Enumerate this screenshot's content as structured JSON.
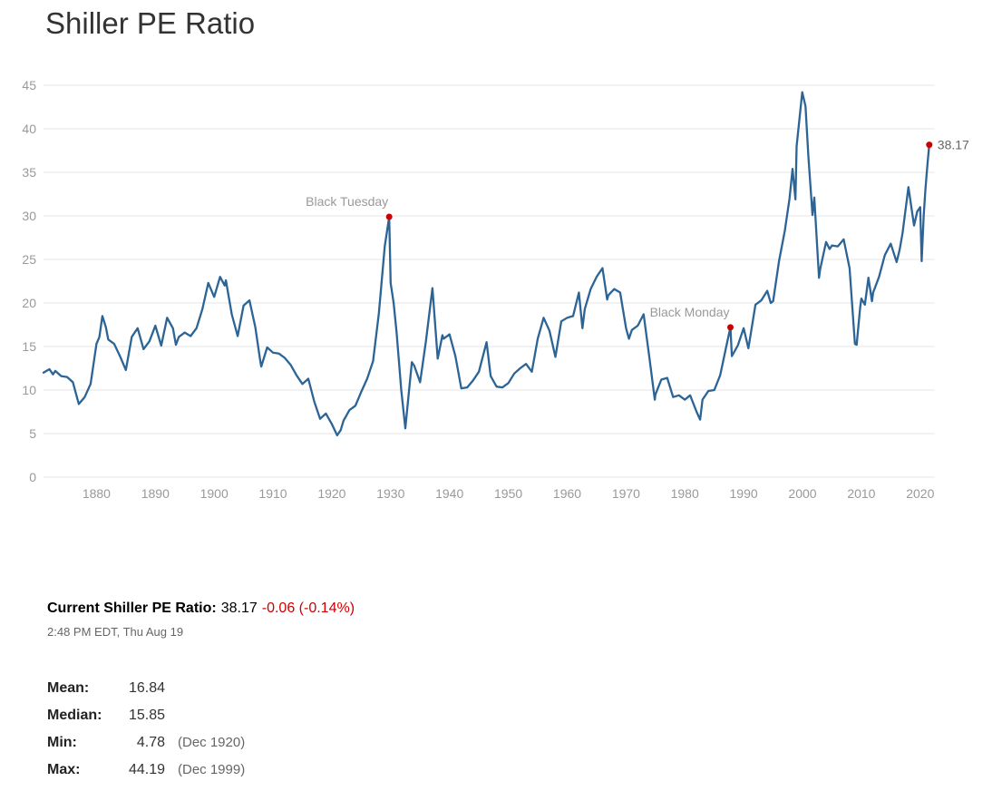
{
  "page": {
    "title": "Shiller PE Ratio"
  },
  "summary": {
    "label": "Current Shiller PE Ratio:",
    "value": "38.17",
    "change": "-0.06 (-0.14%)",
    "timestamp": "2:48 PM EDT, Thu Aug 19"
  },
  "stats": {
    "rows": [
      {
        "label": "Mean:",
        "value": "16.84",
        "note": ""
      },
      {
        "label": "Median:",
        "value": "15.85",
        "note": ""
      },
      {
        "label": "Min:",
        "value": "4.78",
        "note": "(Dec 1920)"
      },
      {
        "label": "Max:",
        "value": "44.19",
        "note": "(Dec 1999)"
      }
    ]
  },
  "chart_data": {
    "type": "line",
    "title": "Shiller PE Ratio",
    "xlabel": "",
    "ylabel": "",
    "xlim": [
      1871,
      2022.5
    ],
    "ylim": [
      0,
      45
    ],
    "x_ticks": [
      1880,
      1890,
      1900,
      1910,
      1920,
      1930,
      1940,
      1950,
      1960,
      1970,
      1980,
      1990,
      2000,
      2010,
      2020
    ],
    "y_ticks": [
      0,
      5,
      10,
      15,
      20,
      25,
      30,
      35,
      40,
      45
    ],
    "grid": "horizontal",
    "legend": "none",
    "line_color": "#2c6496",
    "marker_color": "#cc0000",
    "grid_color": "#e6e6e6",
    "tick_color": "#999999",
    "series": [
      {
        "name": "Shiller PE",
        "points": [
          [
            1871,
            12.0
          ],
          [
            1872,
            12.4
          ],
          [
            1872.6,
            11.8
          ],
          [
            1873,
            12.2
          ],
          [
            1874,
            11.6
          ],
          [
            1875,
            11.5
          ],
          [
            1876,
            10.9
          ],
          [
            1877,
            8.4
          ],
          [
            1878,
            9.2
          ],
          [
            1879,
            10.7
          ],
          [
            1880,
            15.3
          ],
          [
            1880.5,
            16.1
          ],
          [
            1881,
            18.5
          ],
          [
            1881.6,
            17.2
          ],
          [
            1882,
            15.8
          ],
          [
            1883,
            15.3
          ],
          [
            1884,
            13.9
          ],
          [
            1885,
            12.3
          ],
          [
            1886,
            16.1
          ],
          [
            1887,
            17.1
          ],
          [
            1888,
            14.7
          ],
          [
            1889,
            15.6
          ],
          [
            1890,
            17.4
          ],
          [
            1891,
            15.1
          ],
          [
            1892,
            18.3
          ],
          [
            1893,
            17.1
          ],
          [
            1893.5,
            15.2
          ],
          [
            1894,
            16.1
          ],
          [
            1895,
            16.6
          ],
          [
            1896,
            16.2
          ],
          [
            1897,
            17.1
          ],
          [
            1898,
            19.3
          ],
          [
            1899,
            22.3
          ],
          [
            1900,
            20.7
          ],
          [
            1901,
            23.0
          ],
          [
            1901.8,
            22.0
          ],
          [
            1902,
            22.6
          ],
          [
            1903,
            18.7
          ],
          [
            1904,
            16.2
          ],
          [
            1905,
            19.7
          ],
          [
            1906,
            20.3
          ],
          [
            1907,
            17.2
          ],
          [
            1907.8,
            13.5
          ],
          [
            1908,
            12.7
          ],
          [
            1909,
            14.9
          ],
          [
            1910,
            14.3
          ],
          [
            1911,
            14.2
          ],
          [
            1912,
            13.7
          ],
          [
            1913,
            12.9
          ],
          [
            1914,
            11.7
          ],
          [
            1915,
            10.7
          ],
          [
            1916,
            11.3
          ],
          [
            1917,
            8.7
          ],
          [
            1918,
            6.7
          ],
          [
            1919,
            7.3
          ],
          [
            1920,
            6.1
          ],
          [
            1920.9,
            4.8
          ],
          [
            1921.5,
            5.4
          ],
          [
            1922,
            6.5
          ],
          [
            1923,
            7.7
          ],
          [
            1924,
            8.2
          ],
          [
            1925,
            9.8
          ],
          [
            1926,
            11.3
          ],
          [
            1927,
            13.3
          ],
          [
            1928,
            18.8
          ],
          [
            1929,
            26.5
          ],
          [
            1929.75,
            29.9
          ],
          [
            1930,
            22.3
          ],
          [
            1930.5,
            20.0
          ],
          [
            1931,
            16.7
          ],
          [
            1931.8,
            10.0
          ],
          [
            1932.5,
            5.6
          ],
          [
            1933,
            9.1
          ],
          [
            1933.6,
            13.2
          ],
          [
            1934,
            12.8
          ],
          [
            1935,
            10.9
          ],
          [
            1936,
            15.6
          ],
          [
            1937.1,
            21.7
          ],
          [
            1938,
            13.6
          ],
          [
            1938.8,
            16.3
          ],
          [
            1939,
            15.9
          ],
          [
            1940,
            16.4
          ],
          [
            1941,
            13.9
          ],
          [
            1942,
            10.2
          ],
          [
            1943,
            10.3
          ],
          [
            1944,
            11.1
          ],
          [
            1945,
            12.1
          ],
          [
            1946.3,
            15.5
          ],
          [
            1947,
            11.6
          ],
          [
            1948,
            10.4
          ],
          [
            1949,
            10.3
          ],
          [
            1950,
            10.8
          ],
          [
            1951,
            11.9
          ],
          [
            1952,
            12.5
          ],
          [
            1953,
            13.0
          ],
          [
            1954,
            12.1
          ],
          [
            1955,
            15.9
          ],
          [
            1956,
            18.3
          ],
          [
            1957,
            16.8
          ],
          [
            1958,
            13.8
          ],
          [
            1959,
            17.9
          ],
          [
            1960,
            18.3
          ],
          [
            1961,
            18.5
          ],
          [
            1962,
            21.2
          ],
          [
            1962.6,
            17.1
          ],
          [
            1963,
            19.3
          ],
          [
            1964,
            21.6
          ],
          [
            1965,
            23.0
          ],
          [
            1966,
            24.0
          ],
          [
            1966.8,
            20.4
          ],
          [
            1967,
            20.9
          ],
          [
            1968,
            21.6
          ],
          [
            1969,
            21.2
          ],
          [
            1970,
            17.1
          ],
          [
            1970.5,
            15.9
          ],
          [
            1971,
            16.9
          ],
          [
            1972,
            17.4
          ],
          [
            1973,
            18.7
          ],
          [
            1974,
            13.6
          ],
          [
            1974.9,
            8.9
          ],
          [
            1975,
            9.5
          ],
          [
            1976,
            11.2
          ],
          [
            1977,
            11.4
          ],
          [
            1978,
            9.2
          ],
          [
            1979,
            9.4
          ],
          [
            1980,
            8.9
          ],
          [
            1980.9,
            9.4
          ],
          [
            1982,
            7.5
          ],
          [
            1982.6,
            6.6
          ],
          [
            1983,
            8.9
          ],
          [
            1984,
            9.9
          ],
          [
            1985,
            10.0
          ],
          [
            1986,
            11.7
          ],
          [
            1987,
            14.9
          ],
          [
            1987.75,
            17.2
          ],
          [
            1988,
            13.9
          ],
          [
            1989,
            15.1
          ],
          [
            1990,
            17.1
          ],
          [
            1990.8,
            14.8
          ],
          [
            1991,
            15.6
          ],
          [
            1992,
            19.8
          ],
          [
            1993,
            20.3
          ],
          [
            1994,
            21.4
          ],
          [
            1994.6,
            20.0
          ],
          [
            1995,
            20.2
          ],
          [
            1996,
            24.8
          ],
          [
            1997,
            28.3
          ],
          [
            1997.8,
            32.0
          ],
          [
            1998.3,
            35.4
          ],
          [
            1998.8,
            31.9
          ],
          [
            1999,
            38.0
          ],
          [
            1999.95,
            44.2
          ],
          [
            2000.5,
            42.6
          ],
          [
            2001,
            36.8
          ],
          [
            2001.7,
            30.1
          ],
          [
            2002,
            32.1
          ],
          [
            2002.8,
            22.9
          ],
          [
            2003,
            23.9
          ],
          [
            2004,
            27.0
          ],
          [
            2004.6,
            26.2
          ],
          [
            2005,
            26.6
          ],
          [
            2006,
            26.5
          ],
          [
            2007,
            27.3
          ],
          [
            2008,
            24.0
          ],
          [
            2008.9,
            15.3
          ],
          [
            2009.2,
            15.2
          ],
          [
            2009.8,
            19.5
          ],
          [
            2010,
            20.5
          ],
          [
            2010.6,
            19.8
          ],
          [
            2011.2,
            22.9
          ],
          [
            2011.8,
            20.2
          ],
          [
            2012,
            21.2
          ],
          [
            2013,
            23.0
          ],
          [
            2014,
            25.5
          ],
          [
            2015,
            26.8
          ],
          [
            2016,
            24.7
          ],
          [
            2016.5,
            26.1
          ],
          [
            2017,
            28.0
          ],
          [
            2018,
            33.3
          ],
          [
            2018.95,
            28.9
          ],
          [
            2019.5,
            30.5
          ],
          [
            2020,
            31.0
          ],
          [
            2020.25,
            24.8
          ],
          [
            2020.6,
            30.1
          ],
          [
            2020.9,
            33.1
          ],
          [
            2021.1,
            34.8
          ],
          [
            2021.3,
            36.4
          ],
          [
            2021.55,
            38.17
          ]
        ]
      }
    ],
    "annotations": [
      {
        "x": 1929.75,
        "y": 29.9,
        "label": "Black Tuesday",
        "type": "event"
      },
      {
        "x": 1987.75,
        "y": 17.2,
        "label": "Black Monday",
        "type": "event"
      },
      {
        "x": 2021.55,
        "y": 38.17,
        "label": "38.17",
        "type": "last-value"
      }
    ]
  }
}
